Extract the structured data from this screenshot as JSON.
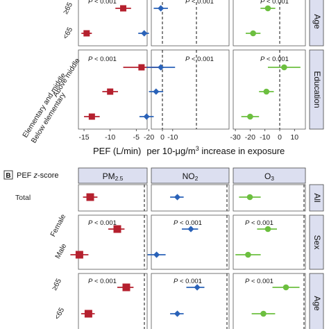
{
  "colors": {
    "pm25": "#b5202e",
    "no2": "#2a62b8",
    "o3": "#6cbf3f",
    "strip_fill": "#dcdff0"
  },
  "chart_data": [
    {
      "type": "forest",
      "panel": "A",
      "xlabel_left": "PEF (L/min)",
      "xlabel_right": "per 10-μg/m³ increase in exposure",
      "columns": [
        "PM2.5",
        "NO2",
        "O3"
      ],
      "xticks": [
        [
          "-15",
          "-10",
          "-5",
          "0"
        ],
        [
          "-20",
          "-10"
        ],
        [
          "-30",
          "-20",
          "-10",
          "0",
          "10"
        ]
      ],
      "groups": [
        {
          "name": "Age",
          "p_value": "P < 0.001",
          "rows": [
            {
              "label": "≥65",
              "pm25": [
                -7.5,
                -9.0,
                -6.0
              ],
              "no2": [
                -15.0,
                -18.0,
                -12.0
              ],
              "o3": [
                -8.0,
                -13.0,
                -3.0
              ]
            },
            {
              "label": "<65",
              "pm25": [
                -14.5,
                -15.5,
                -13.5
              ],
              "no2": [
                -22.0,
                -24.5,
                -20.0
              ],
              "o3": [
                -18.0,
                -23.0,
                -13.0
              ]
            }
          ]
        },
        {
          "name": "Education",
          "p_value": "P < 0.001",
          "rows": [
            {
              "label": "Above middle",
              "pm25": [
                -4.0,
                -7.5,
                -0.5
              ],
              "no2": [
                -15.0,
                -21.0,
                -9.0
              ],
              "o3": [
                3.0,
                -8.0,
                14.0
              ]
            },
            {
              "label": "Elementary and middle",
              "pm25": [
                -10.0,
                -11.5,
                -8.5
              ],
              "no2": [
                -17.0,
                -20.0,
                -14.0
              ],
              "o3": [
                -9.0,
                -14.0,
                -4.0
              ]
            },
            {
              "label": "Below elementary",
              "pm25": [
                -13.5,
                -15.0,
                -12.0
              ],
              "no2": [
                -21.0,
                -24.0,
                -18.0
              ],
              "o3": [
                -20.0,
                -26.0,
                -14.0
              ]
            }
          ]
        }
      ]
    },
    {
      "type": "forest",
      "panel": "B",
      "panel_label": "PEF z-score",
      "columns": [
        "PM2.5",
        "NO2",
        "O3"
      ],
      "groups": [
        {
          "name": "All",
          "p_value": "",
          "rows": [
            {
              "label": "Total",
              "pm25": [
                -0.6,
                -0.68,
                -0.52
              ],
              "no2": [
                -0.55,
                -0.63,
                -0.48
              ],
              "o3": [
                -0.6,
                -0.72,
                -0.48
              ]
            }
          ]
        },
        {
          "name": "Sex",
          "p_value": "P < 0.001",
          "rows": [
            {
              "label": "Female",
              "pm25": [
                -0.3,
                -0.4,
                -0.22
              ],
              "no2": [
                -0.4,
                -0.5,
                -0.32
              ],
              "o3": [
                -0.4,
                -0.52,
                -0.3
              ]
            },
            {
              "label": "Male",
              "pm25": [
                -0.72,
                -0.82,
                -0.62
              ],
              "no2": [
                -0.78,
                -0.88,
                -0.68
              ],
              "o3": [
                -0.62,
                -0.76,
                -0.48
              ]
            }
          ]
        },
        {
          "name": "Age",
          "p_value": "P < 0.001",
          "rows": [
            {
              "label": "≥65",
              "pm25": [
                -0.2,
                -0.3,
                -0.12
              ],
              "no2": [
                -0.33,
                -0.45,
                -0.25
              ],
              "o3": [
                -0.2,
                -0.35,
                -0.05
              ]
            },
            {
              "label": "<65",
              "pm25": [
                -0.62,
                -0.7,
                -0.55
              ],
              "no2": [
                -0.55,
                -0.63,
                -0.48
              ],
              "o3": [
                -0.45,
                -0.58,
                -0.32
              ]
            }
          ]
        }
      ]
    }
  ]
}
